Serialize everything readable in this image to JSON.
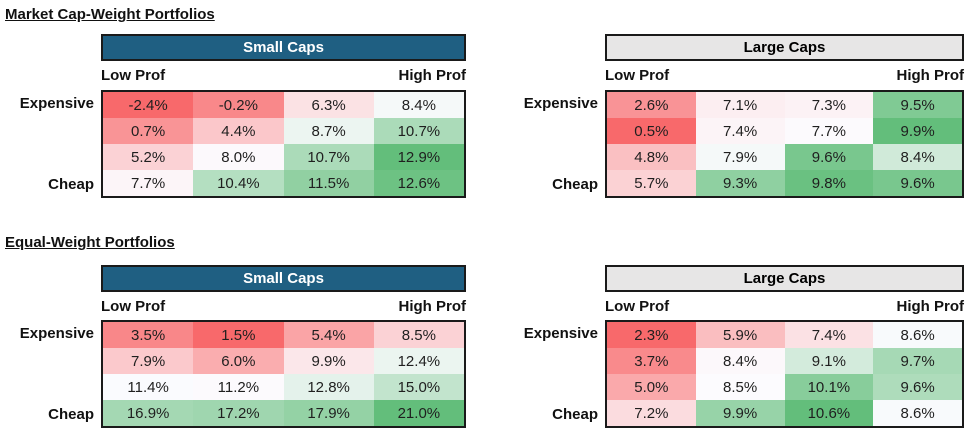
{
  "page": {
    "background": "#FFFFFF"
  },
  "colors": {
    "teal_header_bg": "#1F5F82",
    "teal_header_text": "#FFFFFF",
    "gray_header_bg": "#E7E6E6",
    "gray_header_text": "#000000",
    "table_border": "#1A1A1A",
    "cell_text": "#1F1F1F",
    "heat_min": "#F8696B",
    "heat_mid": "#FCFCFF",
    "heat_max": "#63BE7B"
  },
  "sections": [
    {
      "title": "Market Cap-Weight Portfolios",
      "tables": [
        {
          "header": "Small Caps",
          "header_style": "teal",
          "left_label": "Low Prof",
          "right_label": "High Prof",
          "top_row_label": "Expensive",
          "bottom_row_label": "Cheap",
          "cells": [
            [
              "-2.4%",
              "-0.2%",
              "6.3%",
              "8.4%"
            ],
            [
              "0.7%",
              "4.4%",
              "8.7%",
              "10.7%"
            ],
            [
              "5.2%",
              "8.0%",
              "10.7%",
              "12.9%"
            ],
            [
              "7.7%",
              "10.4%",
              "11.5%",
              "12.6%"
            ]
          ]
        },
        {
          "header": "Large Caps",
          "header_style": "gray",
          "left_label": "Low Prof",
          "right_label": "High Prof",
          "top_row_label": "Expensive",
          "bottom_row_label": "Cheap",
          "cells": [
            [
              "2.6%",
              "7.1%",
              "7.3%",
              "9.5%"
            ],
            [
              "0.5%",
              "7.4%",
              "7.7%",
              "9.9%"
            ],
            [
              "4.8%",
              "7.9%",
              "9.6%",
              "8.4%"
            ],
            [
              "5.7%",
              "9.3%",
              "9.8%",
              "9.6%"
            ]
          ]
        }
      ]
    },
    {
      "title": "Equal-Weight Portfolios",
      "tables": [
        {
          "header": "Small Caps",
          "header_style": "teal",
          "left_label": "Low Prof",
          "right_label": "High Prof",
          "top_row_label": "Expensive",
          "bottom_row_label": "Cheap",
          "cells": [
            [
              "3.5%",
              "1.5%",
              "5.4%",
              "8.5%"
            ],
            [
              "7.9%",
              "6.0%",
              "9.9%",
              "12.4%"
            ],
            [
              "11.4%",
              "11.2%",
              "12.8%",
              "15.0%"
            ],
            [
              "16.9%",
              "17.2%",
              "17.9%",
              "21.0%"
            ]
          ]
        },
        {
          "header": "Large Caps",
          "header_style": "gray",
          "left_label": "Low Prof",
          "right_label": "High Prof",
          "top_row_label": "Expensive",
          "bottom_row_label": "Cheap",
          "cells": [
            [
              "2.3%",
              "5.9%",
              "7.4%",
              "8.6%"
            ],
            [
              "3.7%",
              "8.4%",
              "9.1%",
              "9.7%"
            ],
            [
              "5.0%",
              "8.5%",
              "10.1%",
              "9.6%"
            ],
            [
              "7.2%",
              "9.9%",
              "10.6%",
              "8.6%"
            ]
          ]
        }
      ]
    }
  ],
  "chart_data": [
    {
      "type": "heatmap",
      "title": "Market Cap-Weight Portfolios — Small Caps",
      "rows": [
        "Expensive",
        "",
        "",
        "Cheap"
      ],
      "columns": [
        "Low Prof",
        "",
        "",
        "High Prof"
      ],
      "values": [
        [
          -2.4,
          -0.2,
          6.3,
          8.4
        ],
        [
          0.7,
          4.4,
          8.7,
          10.7
        ],
        [
          5.2,
          8.0,
          10.7,
          12.9
        ],
        [
          7.7,
          10.4,
          11.5,
          12.6
        ]
      ],
      "value_format": "percent_1dp",
      "color_scale": {
        "min_color": "#F8696B",
        "mid_color": "#FCFCFF",
        "max_color": "#63BE7B",
        "midpoint": "median_per_table"
      }
    },
    {
      "type": "heatmap",
      "title": "Market Cap-Weight Portfolios — Large Caps",
      "rows": [
        "Expensive",
        "",
        "",
        "Cheap"
      ],
      "columns": [
        "Low Prof",
        "",
        "",
        "High Prof"
      ],
      "values": [
        [
          2.6,
          7.1,
          7.3,
          9.5
        ],
        [
          0.5,
          7.4,
          7.7,
          9.9
        ],
        [
          4.8,
          7.9,
          9.6,
          8.4
        ],
        [
          5.7,
          9.3,
          9.8,
          9.6
        ]
      ],
      "value_format": "percent_1dp",
      "color_scale": {
        "min_color": "#F8696B",
        "mid_color": "#FCFCFF",
        "max_color": "#63BE7B",
        "midpoint": "median_per_table"
      }
    },
    {
      "type": "heatmap",
      "title": "Equal-Weight Portfolios — Small Caps",
      "rows": [
        "Expensive",
        "",
        "",
        "Cheap"
      ],
      "columns": [
        "Low Prof",
        "",
        "",
        "High Prof"
      ],
      "values": [
        [
          3.5,
          1.5,
          5.4,
          8.5
        ],
        [
          7.9,
          6.0,
          9.9,
          12.4
        ],
        [
          11.4,
          11.2,
          12.8,
          15.0
        ],
        [
          16.9,
          17.2,
          17.9,
          21.0
        ]
      ],
      "value_format": "percent_1dp",
      "color_scale": {
        "min_color": "#F8696B",
        "mid_color": "#FCFCFF",
        "max_color": "#63BE7B",
        "midpoint": "median_per_table"
      }
    },
    {
      "type": "heatmap",
      "title": "Equal-Weight Portfolios — Large Caps",
      "rows": [
        "Expensive",
        "",
        "",
        "Cheap"
      ],
      "columns": [
        "Low Prof",
        "",
        "",
        "High Prof"
      ],
      "values": [
        [
          2.3,
          5.9,
          7.4,
          8.6
        ],
        [
          3.7,
          8.4,
          9.1,
          9.7
        ],
        [
          5.0,
          8.5,
          10.1,
          9.6
        ],
        [
          7.2,
          9.9,
          10.6,
          8.6
        ]
      ],
      "value_format": "percent_1dp",
      "color_scale": {
        "min_color": "#F8696B",
        "mid_color": "#FCFCFF",
        "max_color": "#63BE7B",
        "midpoint": "median_per_table"
      }
    }
  ]
}
